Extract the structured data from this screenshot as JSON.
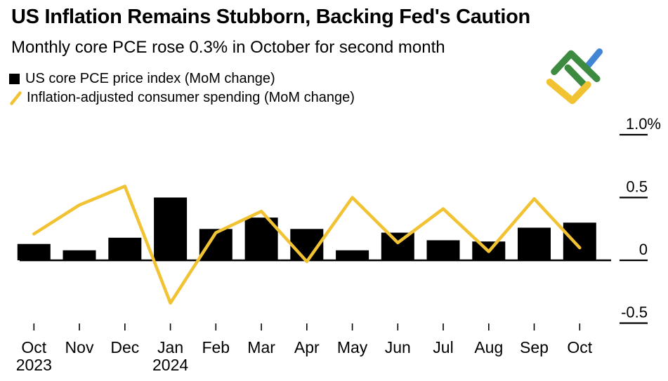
{
  "header": {
    "title": "US Inflation Remains Stubborn, Backing Fed's Caution",
    "subtitle": "Monthly core PCE rose 0.3% in October for second month"
  },
  "legend": {
    "items": [
      {
        "label": "US core PCE price index (MoM change)",
        "marker": "black-square"
      },
      {
        "label": "Inflation-adjusted consumer spending (MoM change)",
        "marker": "yellow-slash"
      }
    ]
  },
  "logo": {
    "name": "LiteFinance logo",
    "colors": {
      "green": "#3d8b40",
      "blue": "#4285d4",
      "yellow": "#f1c232"
    }
  },
  "chart_data": {
    "type": "bar+line",
    "title": "US Inflation Remains Stubborn, Backing Fed's Caution",
    "subtitle": "Monthly core PCE rose 0.3% in October for second month",
    "unit": "%",
    "categories": [
      "Oct",
      "Nov",
      "Dec",
      "Jan",
      "Feb",
      "Mar",
      "Apr",
      "May",
      "Jun",
      "Jul",
      "Aug",
      "Sep",
      "Oct"
    ],
    "year_labels": [
      {
        "category_index": 0,
        "label": "2023"
      },
      {
        "category_index": 3,
        "label": "2024"
      }
    ],
    "series": [
      {
        "name": "US core PCE price index (MoM change)",
        "type": "bar",
        "color": "#000000",
        "values": [
          0.13,
          0.08,
          0.18,
          0.5,
          0.25,
          0.34,
          0.25,
          0.08,
          0.22,
          0.16,
          0.15,
          0.26,
          0.3
        ]
      },
      {
        "name": "Inflation-adjusted consumer spending (MoM change)",
        "type": "line",
        "color": "#f1c232",
        "values": [
          0.21,
          0.44,
          0.59,
          -0.34,
          0.22,
          0.39,
          -0.01,
          0.5,
          0.14,
          0.41,
          0.07,
          0.49,
          0.1
        ]
      }
    ],
    "y_axis": {
      "side": "right",
      "grid": false,
      "range": [
        -0.62,
        1.1
      ],
      "ticks": [
        {
          "value": 1.0,
          "label": "1.0%"
        },
        {
          "value": 0.5,
          "label": "0.5"
        },
        {
          "value": 0.0,
          "label": "0"
        },
        {
          "value": -0.5,
          "label": "-0.5"
        }
      ]
    }
  }
}
